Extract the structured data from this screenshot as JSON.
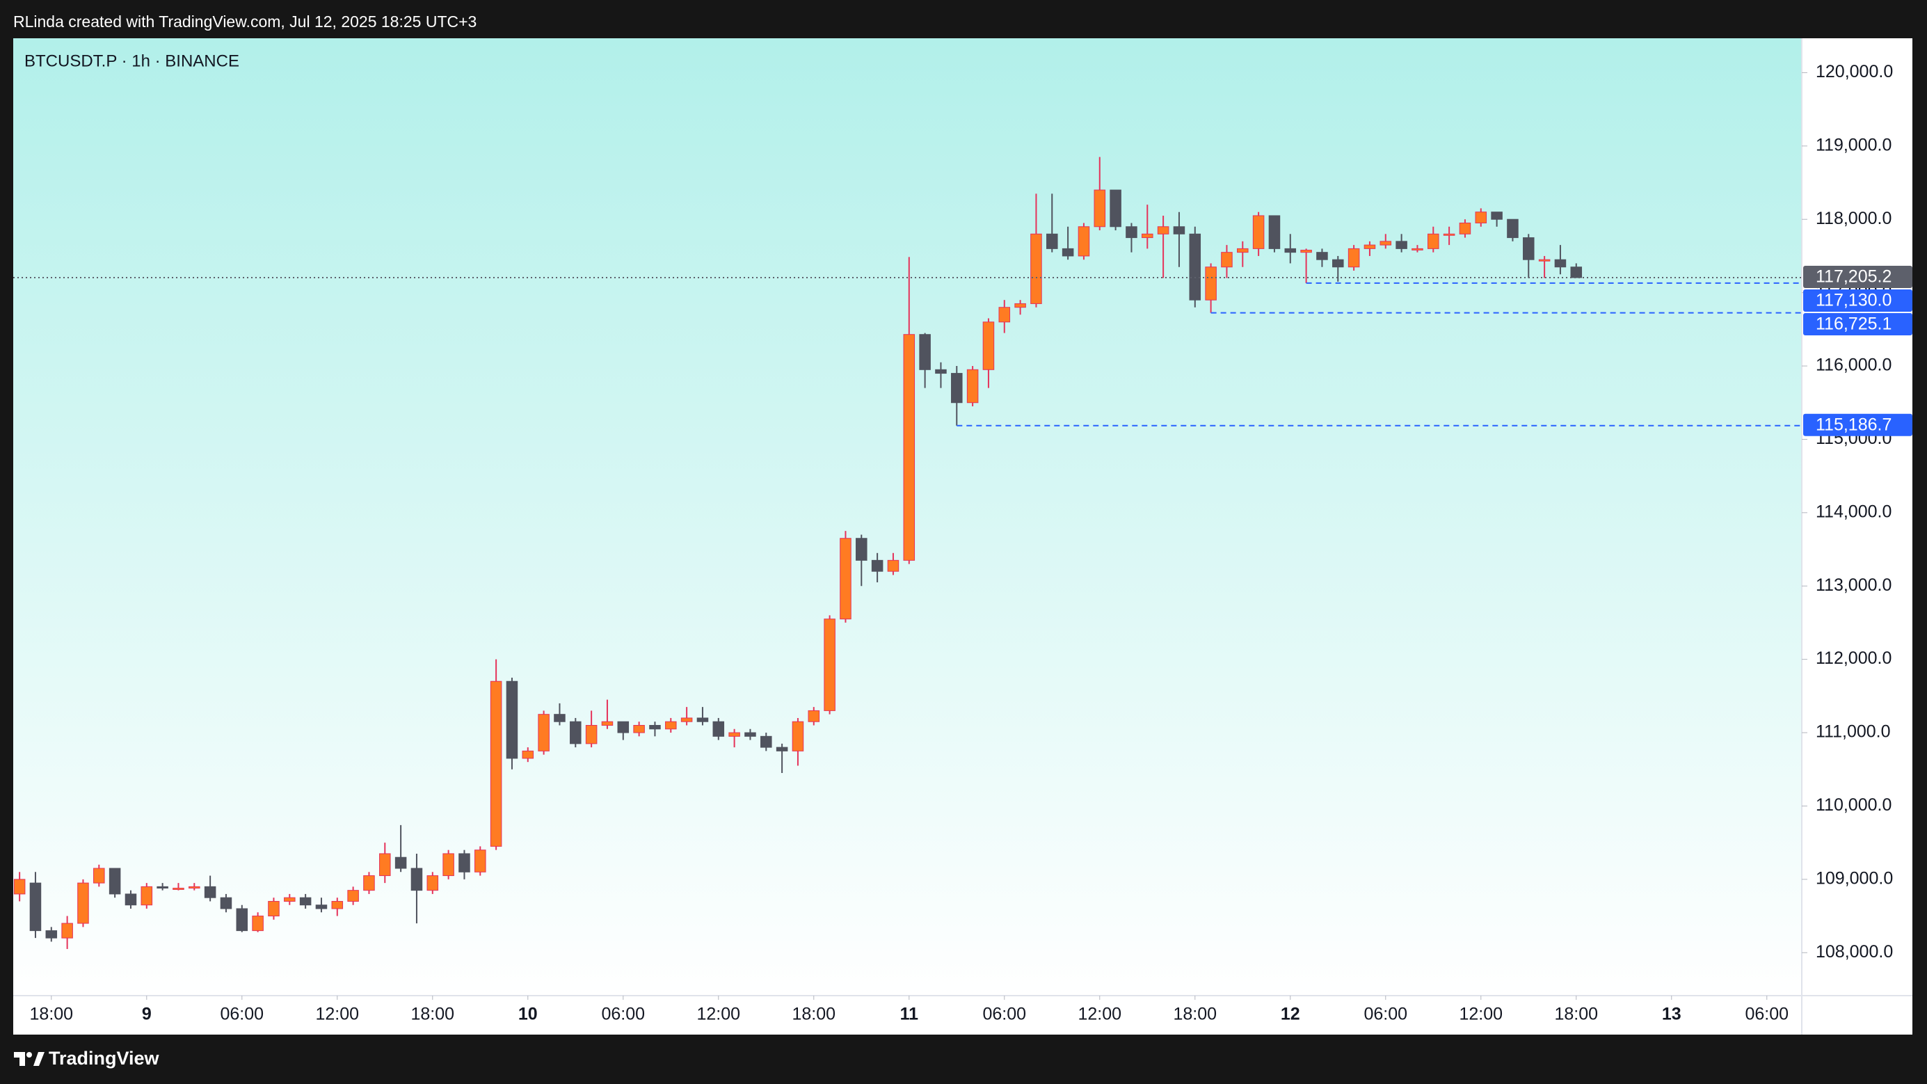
{
  "header": {
    "credit": "RLinda created with TradingView.com, Jul 12, 2025 18:25 UTC+3"
  },
  "chart_data": {
    "type": "candlestick",
    "title": "BTCUSDT.P · 1h · BINANCE",
    "x": [
      "Jul 8 16:00",
      "Jul 8 17:00",
      "Jul 8 18:00",
      "Jul 8 19:00",
      "Jul 8 20:00",
      "Jul 8 21:00",
      "Jul 8 22:00",
      "Jul 8 23:00",
      "Jul 9 00:00",
      "Jul 9 01:00",
      "Jul 9 02:00",
      "Jul 9 03:00",
      "Jul 9 04:00",
      "Jul 9 05:00",
      "Jul 9 06:00",
      "Jul 9 07:00",
      "Jul 9 08:00",
      "Jul 9 09:00",
      "Jul 9 10:00",
      "Jul 9 11:00",
      "Jul 9 12:00",
      "Jul 9 13:00",
      "Jul 9 14:00",
      "Jul 9 15:00",
      "Jul 9 16:00",
      "Jul 9 17:00",
      "Jul 9 18:00",
      "Jul 9 19:00",
      "Jul 9 20:00",
      "Jul 9 21:00",
      "Jul 9 22:00",
      "Jul 9 23:00",
      "Jul 10 00:00",
      "Jul 10 01:00",
      "Jul 10 02:00",
      "Jul 10 03:00",
      "Jul 10 04:00",
      "Jul 10 05:00",
      "Jul 10 06:00",
      "Jul 10 07:00",
      "Jul 10 08:00",
      "Jul 10 09:00",
      "Jul 10 10:00",
      "Jul 10 11:00",
      "Jul 10 12:00",
      "Jul 10 13:00",
      "Jul 10 14:00",
      "Jul 10 15:00",
      "Jul 10 16:00",
      "Jul 10 17:00",
      "Jul 10 18:00",
      "Jul 10 19:00",
      "Jul 10 20:00",
      "Jul 10 21:00",
      "Jul 10 22:00",
      "Jul 10 23:00",
      "Jul 11 00:00",
      "Jul 11 01:00",
      "Jul 11 02:00",
      "Jul 11 03:00",
      "Jul 11 04:00",
      "Jul 11 05:00",
      "Jul 11 06:00",
      "Jul 11 07:00",
      "Jul 11 08:00",
      "Jul 11 09:00",
      "Jul 11 10:00",
      "Jul 11 11:00",
      "Jul 11 12:00",
      "Jul 11 13:00",
      "Jul 11 14:00",
      "Jul 11 15:00",
      "Jul 11 16:00",
      "Jul 11 17:00",
      "Jul 11 18:00",
      "Jul 11 19:00",
      "Jul 11 20:00",
      "Jul 11 21:00",
      "Jul 11 22:00",
      "Jul 11 23:00",
      "Jul 12 00:00",
      "Jul 12 01:00",
      "Jul 12 02:00",
      "Jul 12 03:00",
      "Jul 12 04:00",
      "Jul 12 05:00",
      "Jul 12 06:00",
      "Jul 12 07:00",
      "Jul 12 08:00",
      "Jul 12 09:00",
      "Jul 12 10:00",
      "Jul 12 11:00",
      "Jul 12 12:00",
      "Jul 12 13:00",
      "Jul 12 14:00",
      "Jul 12 15:00",
      "Jul 12 16:00",
      "Jul 12 17:00",
      "Jul 12 18:00"
    ],
    "open": [
      108800,
      108950,
      108300,
      108200,
      108400,
      108950,
      109150,
      108800,
      108650,
      108900,
      108880,
      108880,
      108900,
      108750,
      108600,
      108300,
      108500,
      108700,
      108750,
      108650,
      108600,
      108700,
      108850,
      109050,
      109300,
      109150,
      108850,
      109050,
      109350,
      109100,
      109450,
      111700,
      110650,
      110750,
      111250,
      111150,
      110850,
      111100,
      111150,
      111000,
      111100,
      111050,
      111150,
      111200,
      111150,
      110950,
      111000,
      110950,
      110800,
      110750,
      111150,
      111300,
      112550,
      113650,
      113350,
      113200,
      113350,
      116430,
      115950,
      115900,
      115500,
      115950,
      116600,
      116800,
      116850,
      117800,
      117600,
      117500,
      117900,
      118400,
      117900,
      117750,
      117800,
      117900,
      117800,
      116900,
      117350,
      117550,
      117600,
      118050,
      117600,
      117550,
      117550,
      117450,
      117350,
      117600,
      117650,
      117700,
      117600,
      117600,
      117800,
      117800,
      117950,
      118100,
      118000,
      117750,
      117450,
      117450,
      117350
    ],
    "high": [
      109100,
      109100,
      108350,
      108500,
      109000,
      109200,
      109150,
      108850,
      108950,
      108950,
      108950,
      108950,
      109050,
      108800,
      108650,
      108550,
      108750,
      108800,
      108800,
      108750,
      108750,
      108900,
      109100,
      109500,
      109740,
      109350,
      109100,
      109400,
      109400,
      109450,
      112000,
      111750,
      110800,
      111300,
      111400,
      111200,
      111300,
      111450,
      111150,
      111150,
      111150,
      111200,
      111350,
      111350,
      111200,
      111050,
      111050,
      111000,
      110850,
      111200,
      111350,
      112600,
      113750,
      113700,
      113450,
      113450,
      117486,
      116450,
      116050,
      116000,
      116000,
      116650,
      116900,
      116900,
      118350,
      118350,
      117900,
      117950,
      118850,
      118400,
      117950,
      118200,
      118050,
      118100,
      117900,
      117400,
      117650,
      117700,
      118100,
      118050,
      117800,
      117600,
      117600,
      117500,
      117650,
      117700,
      117800,
      117800,
      117650,
      117900,
      117900,
      118000,
      118150,
      118100,
      118000,
      117800,
      117500,
      117650,
      117400
    ],
    "low": [
      108700,
      108200,
      108150,
      108050,
      108350,
      108900,
      108750,
      108600,
      108600,
      108850,
      108850,
      108850,
      108700,
      108550,
      108280,
      108280,
      108450,
      108650,
      108600,
      108550,
      108500,
      108650,
      108800,
      108950,
      109100,
      108400,
      108800,
      109000,
      109000,
      109050,
      109400,
      110500,
      110600,
      110700,
      111100,
      110800,
      110800,
      111050,
      110900,
      110950,
      110950,
      111000,
      111100,
      111100,
      110900,
      110800,
      110900,
      110750,
      110450,
      110550,
      111100,
      111250,
      112500,
      113000,
      113050,
      113150,
      113300,
      115700,
      115700,
      115186.7,
      115450,
      115700,
      116450,
      116700,
      116800,
      117550,
      117450,
      117450,
      117850,
      117850,
      117550,
      117600,
      117200,
      117350,
      116800,
      116725.1,
      117200,
      117350,
      117500,
      117550,
      117400,
      117130,
      117350,
      117150,
      117300,
      117500,
      117600,
      117550,
      117550,
      117550,
      117650,
      117750,
      117900,
      117900,
      117700,
      117200,
      117200,
      117250,
      117200
    ],
    "close": [
      109000,
      108300,
      108200,
      108400,
      108950,
      109150,
      108800,
      108650,
      108900,
      108880,
      108880,
      108900,
      108750,
      108600,
      108300,
      108500,
      108700,
      108750,
      108650,
      108600,
      108700,
      108850,
      109050,
      109350,
      109150,
      108850,
      109050,
      109350,
      109100,
      109400,
      111700,
      110650,
      110750,
      111250,
      111150,
      110850,
      111100,
      111150,
      111000,
      111100,
      111050,
      111150,
      111200,
      111150,
      110950,
      111000,
      110950,
      110800,
      110750,
      111150,
      111300,
      112550,
      113650,
      113350,
      113200,
      113350,
      116430,
      115950,
      115900,
      115500,
      115950,
      116600,
      116800,
      116850,
      117800,
      117600,
      117500,
      117900,
      118400,
      117900,
      117750,
      117800,
      117900,
      117800,
      116900,
      117350,
      117550,
      117600,
      118050,
      117600,
      117550,
      117580,
      117450,
      117350,
      117600,
      117650,
      117700,
      117600,
      117600,
      117800,
      117800,
      117950,
      118100,
      118000,
      117750,
      117450,
      117450,
      117350,
      117205.2
    ],
    "up_color": "#ff7b22",
    "up_wick_color": "#e5335a",
    "down_color": "#50535e",
    "xlim": [
      "Jul 8 15:36",
      "Jul 13 08:12"
    ],
    "xticks": [
      {
        "value": "Jul 8 18:00",
        "label": "18:00"
      },
      {
        "value": "Jul 9 00:00",
        "label": "9"
      },
      {
        "value": "Jul 9 06:00",
        "label": "06:00"
      },
      {
        "value": "Jul 9 12:00",
        "label": "12:00"
      },
      {
        "value": "Jul 9 18:00",
        "label": "18:00"
      },
      {
        "value": "Jul 10 00:00",
        "label": "10"
      },
      {
        "value": "Jul 10 06:00",
        "label": "06:00"
      },
      {
        "value": "Jul 10 12:00",
        "label": "12:00"
      },
      {
        "value": "Jul 10 18:00",
        "label": "18:00"
      },
      {
        "value": "Jul 11 00:00",
        "label": "11"
      },
      {
        "value": "Jul 11 06:00",
        "label": "06:00"
      },
      {
        "value": "Jul 11 12:00",
        "label": "12:00"
      },
      {
        "value": "Jul 11 18:00",
        "label": "18:00"
      },
      {
        "value": "Jul 12 00:00",
        "label": "12"
      },
      {
        "value": "Jul 12 06:00",
        "label": "06:00"
      },
      {
        "value": "Jul 12 12:00",
        "label": "12:00"
      },
      {
        "value": "Jul 12 18:00",
        "label": "18:00"
      },
      {
        "value": "Jul 13 00:00",
        "label": "13"
      },
      {
        "value": "Jul 13 06:00",
        "label": "06:00"
      }
    ],
    "ylim": [
      107414,
      120469
    ],
    "yticks": [
      {
        "value": 108000,
        "label": "108,000.0"
      },
      {
        "value": 109000,
        "label": "109,000.0"
      },
      {
        "value": 110000,
        "label": "110,000.0"
      },
      {
        "value": 111000,
        "label": "111,000.0"
      },
      {
        "value": 112000,
        "label": "112,000.0"
      },
      {
        "value": 113000,
        "label": "113,000.0"
      },
      {
        "value": 114000,
        "label": "114,000.0"
      },
      {
        "value": 115000,
        "label": "115,000.0"
      },
      {
        "value": 116000,
        "label": "116,000.0"
      },
      {
        "value": 117000,
        "label": "117,000.0"
      },
      {
        "value": 118000,
        "label": "118,000.0"
      },
      {
        "value": 119000,
        "label": "119,000.0"
      },
      {
        "value": 120000,
        "label": "120,000.0"
      }
    ],
    "grid": false,
    "price_lines": [
      {
        "value": 117205.2,
        "label": "117,205.2",
        "color": "#5d606b",
        "style": "dotted"
      },
      {
        "value": 117130.0,
        "label": "117,130.0",
        "from": "Jul 12 01:00",
        "color": "#2962ff",
        "style": "dashed"
      },
      {
        "value": 116725.1,
        "label": "116,725.1",
        "from": "Jul 11 19:00",
        "color": "#2962ff",
        "style": "dashed"
      },
      {
        "value": 115186.7,
        "label": "115,186.7",
        "from": "Jul 11 03:00",
        "color": "#2962ff",
        "style": "dashed"
      }
    ]
  },
  "footer": {
    "brand": "TradingView"
  }
}
